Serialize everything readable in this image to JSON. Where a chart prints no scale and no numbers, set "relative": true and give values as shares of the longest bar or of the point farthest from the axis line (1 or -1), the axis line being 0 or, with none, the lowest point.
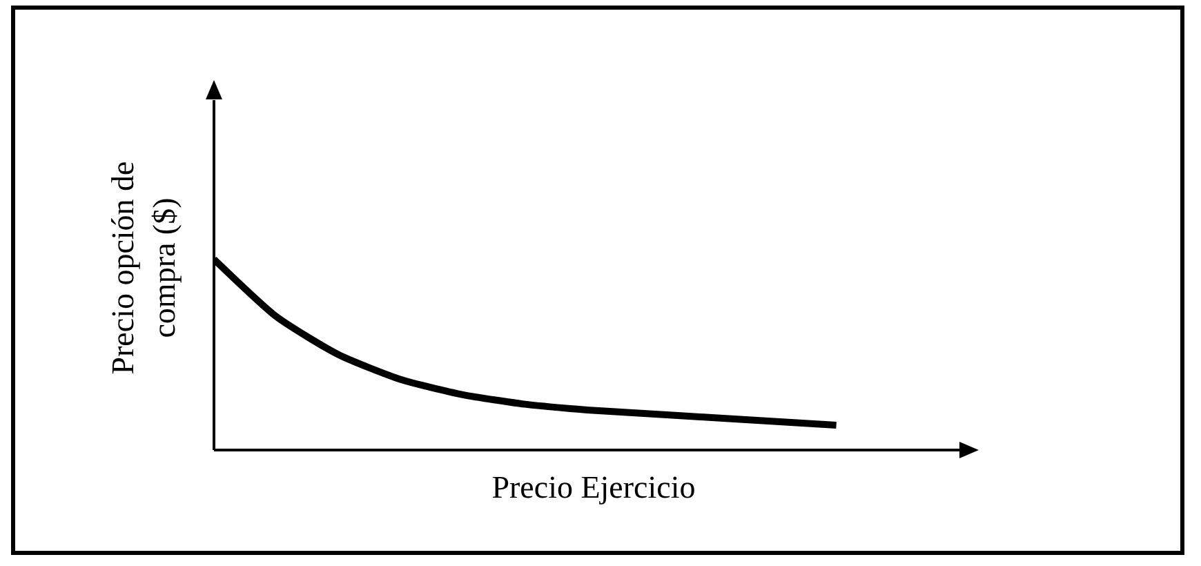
{
  "chart_data": {
    "type": "line",
    "relative": true,
    "xlabel": "Precio Ejercicio",
    "ylabel": "Precio opción de compra ($)",
    "categories": [
      null,
      null,
      null,
      null,
      null,
      null,
      null,
      null,
      null,
      null,
      null
    ],
    "series": [
      {
        "color": "#000000",
        "values": [
          1,
          0.7,
          0.5,
          0.37,
          0.29,
          0.24,
          0.21,
          0.19,
          0.17,
          0.15,
          0.13
        ]
      }
    ],
    "marker": "none",
    "line_style": "solid",
    "grid": false
  }
}
